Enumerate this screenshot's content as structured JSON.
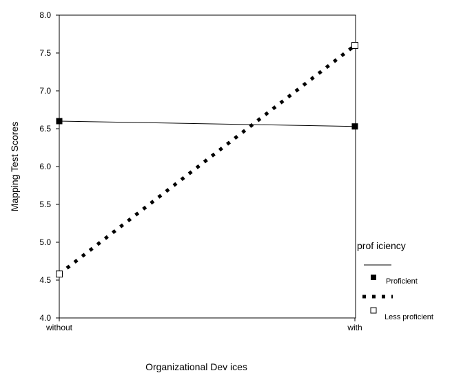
{
  "chart_data": {
    "type": "line",
    "title": "",
    "xlabel": "Organizational Dev ices",
    "ylabel": "Mapping Test Scores",
    "categories": [
      "without",
      "with"
    ],
    "y_ticks": [
      "4.0",
      "4.5",
      "5.0",
      "5.5",
      "6.0",
      "6.5",
      "7.0",
      "7.5",
      "8.0"
    ],
    "ylim": [
      4.0,
      8.0
    ],
    "grid": false,
    "legend": {
      "title": "prof iciency",
      "placement": "right"
    },
    "series": [
      {
        "name": "Proficient",
        "values": [
          6.6,
          6.53
        ],
        "line_style": "solid",
        "marker": "filled-square",
        "color": "#000000"
      },
      {
        "name": "Less proficient",
        "values": [
          4.58,
          7.6
        ],
        "line_style": "dotted",
        "marker": "open-square",
        "color": "#000000"
      }
    ]
  }
}
